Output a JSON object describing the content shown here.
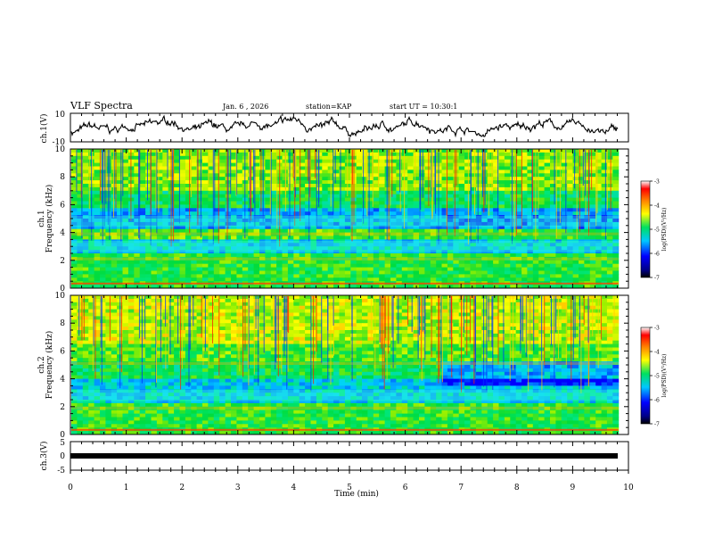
{
  "header": {
    "title": "VLF Spectra",
    "date": "Jan. 6 , 2026",
    "station": "station=KAP",
    "start": "start UT = 10:30:1"
  },
  "chart_data": [
    {
      "type": "line",
      "ylabel": "ch.1(V)",
      "ylim": [
        -10,
        10
      ],
      "y_ticks": [
        "10",
        "-10"
      ],
      "description_series": "ch.1 waveform amplitude oscillating roughly between -8 and 8 V",
      "series": [
        {
          "name": "ch.1",
          "values_range": [
            -8,
            8
          ]
        }
      ]
    },
    {
      "type": "heatmap",
      "panel": "ch.1",
      "ylabel_line1": "ch.1",
      "ylabel_line2": "Frequency (kHz)",
      "ylim": [
        0,
        10
      ],
      "y_ticks": [
        "0",
        "2",
        "4",
        "6",
        "8",
        "10"
      ],
      "colorbar": {
        "label": "log(PSD)(V²/Hz)",
        "range": [
          -7,
          -3
        ],
        "ticks": [
          "-3",
          "-4",
          "-5",
          "-6",
          "-7"
        ]
      },
      "band_notes": [
        {
          "freq_khz": [
            3.8,
            4.0
          ],
          "level": "strong"
        },
        {
          "freq_khz": [
            2.0,
            2.2
          ],
          "level": "strong"
        },
        {
          "freq_khz": [
            4.4,
            5.2
          ],
          "level": "weak"
        },
        {
          "freq_khz": [
            2.6,
            3.4
          ],
          "level": "weak"
        }
      ]
    },
    {
      "type": "heatmap",
      "panel": "ch.2",
      "ylabel_line1": "ch.2",
      "ylabel_line2": "Frequency (kHz)",
      "ylim": [
        0,
        10
      ],
      "y_ticks": [
        "0",
        "2",
        "4",
        "6",
        "8",
        "10"
      ],
      "colorbar": {
        "label": "log(PSD)(V²/Hz)",
        "range": [
          -7,
          -3
        ],
        "ticks": [
          "-3",
          "-4",
          "-5",
          "-6",
          "-7"
        ]
      },
      "band_notes": [
        {
          "freq_khz": [
            5.0,
            5.2
          ],
          "level": "strong"
        },
        {
          "freq_khz": [
            1.8,
            2.0
          ],
          "level": "strong"
        },
        {
          "freq_khz": [
            2.4,
            3.2
          ],
          "level": "weak"
        }
      ]
    },
    {
      "type": "line",
      "ylabel": "ch.3(V)",
      "ylim": [
        -5,
        5
      ],
      "y_ticks": [
        "5",
        "0",
        "-5"
      ],
      "series": [
        {
          "name": "ch.3",
          "values_range": [
            -0.5,
            0.5
          ]
        }
      ]
    }
  ],
  "x_axis": {
    "label": "Time (min)",
    "ticks": [
      "0",
      "1",
      "2",
      "3",
      "4",
      "5",
      "6",
      "7",
      "8",
      "9",
      "10"
    ],
    "range": [
      0,
      10
    ],
    "data_end": 9.82
  },
  "colors": {
    "blue": "#0000ff",
    "cyan": "#00d0ff",
    "green": "#00e060",
    "yellow": "#ffff00",
    "red": "#ff0000"
  }
}
